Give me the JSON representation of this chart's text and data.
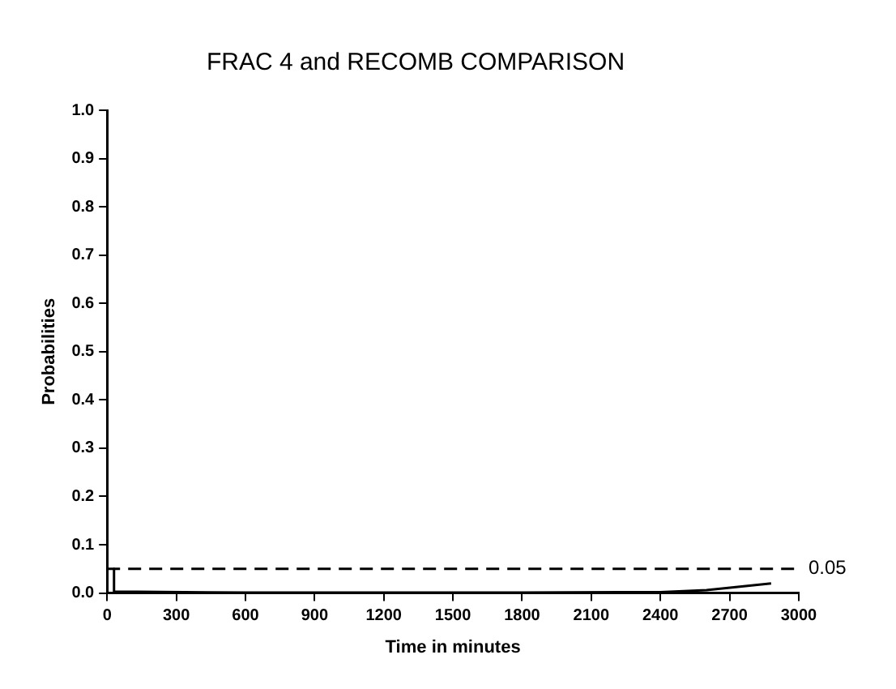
{
  "chart_data": {
    "type": "line",
    "title": "FRAC 4 and RECOMB COMPARISON",
    "xlabel": "Time in minutes",
    "ylabel": "Probabilities",
    "x": [
      30,
      30,
      600,
      1200,
      1800,
      2400,
      2600,
      2880
    ],
    "series": [
      {
        "color": "#000000",
        "values": [
          0.05,
          0.003,
          0.001,
          0.001,
          0.001,
          0.002,
          0.006,
          0.02
        ]
      }
    ],
    "xlim": [
      0,
      3000
    ],
    "xticks": [
      0,
      300,
      600,
      900,
      1200,
      1500,
      1800,
      2100,
      2400,
      2700,
      3000
    ],
    "ylim": [
      0,
      1
    ],
    "yticks": [
      {
        "value": 0,
        "label": "0.0"
      },
      {
        "value": 0.1,
        "label": "0.1"
      },
      {
        "value": 0.2,
        "label": "0.2"
      },
      {
        "value": 0.3,
        "label": "0.3"
      },
      {
        "value": 0.4,
        "label": "0.4"
      },
      {
        "value": 0.5,
        "label": "0.5"
      },
      {
        "value": 0.6,
        "label": "0.6"
      },
      {
        "value": 0.7,
        "label": "0.7"
      },
      {
        "value": 0.8,
        "label": "0.8"
      },
      {
        "value": 0.9,
        "label": "0.9"
      },
      {
        "value": 1,
        "label": "1.0"
      }
    ],
    "ref_lines": [
      {
        "axis": "y",
        "value": 0.05,
        "label": "0.05",
        "line_style": "dashed",
        "color": "#000000"
      }
    ],
    "grid": false,
    "legend": false,
    "marker": "none",
    "line_style": "solid"
  }
}
